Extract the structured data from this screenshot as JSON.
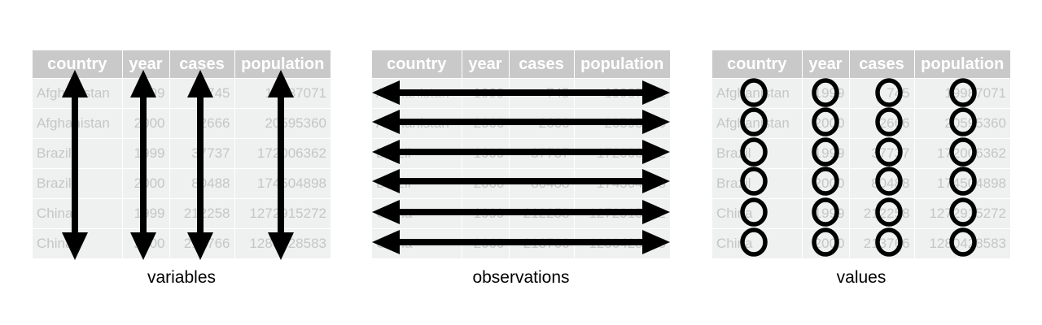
{
  "headers": [
    "country",
    "year",
    "cases",
    "population"
  ],
  "rows": [
    [
      "Afghanistan",
      "1999",
      "745",
      "19987071"
    ],
    [
      "Afghanistan",
      "2000",
      "2666",
      "20595360"
    ],
    [
      "Brazil",
      "1999",
      "37737",
      "172006362"
    ],
    [
      "Brazil",
      "2000",
      "80488",
      "174504898"
    ],
    [
      "China",
      "1999",
      "212258",
      "1272915272"
    ],
    [
      "China",
      "2000",
      "213766",
      "1280428583"
    ]
  ],
  "captions": {
    "variables": "variables",
    "observations": "observations",
    "values": "values"
  },
  "colors": {
    "header_bg": "#c9c9c9",
    "cell_bg": "#eef1f0",
    "cell_text": "#c4c7c6",
    "mark": "#000000"
  }
}
